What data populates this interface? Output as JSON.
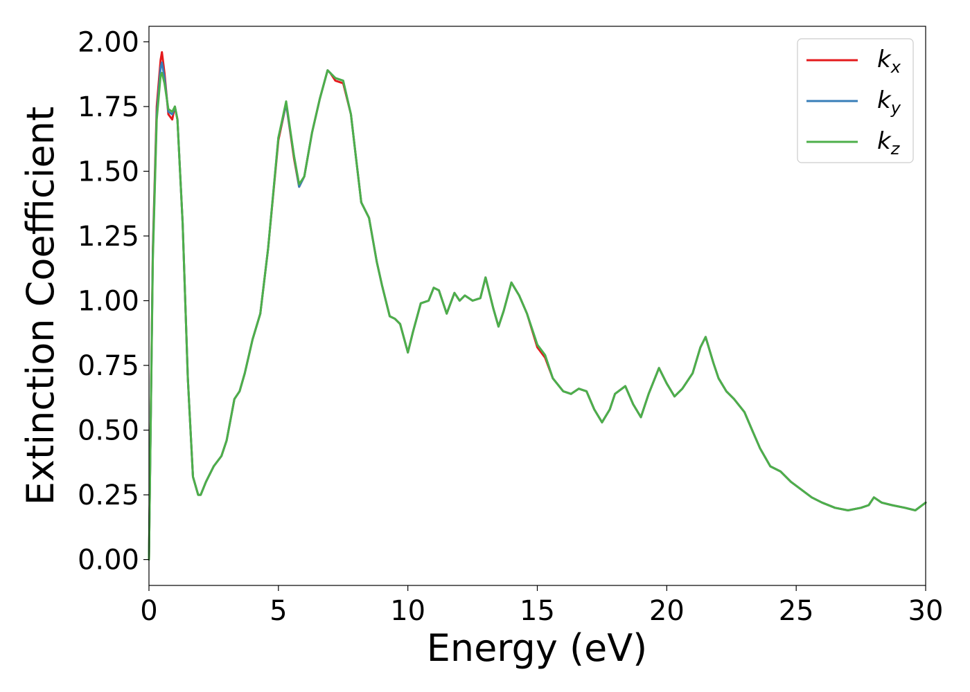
{
  "chart_data": {
    "type": "line",
    "title": "",
    "xlabel": "Energy (eV)",
    "ylabel": "Extinction Coefficient",
    "xlim": [
      0,
      30
    ],
    "ylim": [
      -0.1,
      2.06
    ],
    "xticks": [
      0,
      5,
      10,
      15,
      20,
      25,
      30
    ],
    "xtick_labels": [
      "0",
      "5",
      "10",
      "15",
      "20",
      "25",
      "30"
    ],
    "yticks": [
      0.0,
      0.25,
      0.5,
      0.75,
      1.0,
      1.25,
      1.5,
      1.75,
      2.0
    ],
    "ytick_labels": [
      "0.00",
      "0.25",
      "0.50",
      "0.75",
      "1.00",
      "1.25",
      "1.50",
      "1.75",
      "2.00"
    ],
    "grid": false,
    "legend_position": "top-right",
    "series": [
      {
        "name": "k",
        "subscript": "x",
        "color": "#e41a1c",
        "x": [
          0,
          0.15,
          0.3,
          0.45,
          0.5,
          0.6,
          0.75,
          0.9,
          1.0,
          1.1,
          1.3,
          1.5,
          1.7,
          1.9,
          2.0,
          2.2,
          2.5,
          2.8,
          3.0,
          3.3,
          3.5,
          3.7,
          4.0,
          4.3,
          4.6,
          5.0,
          5.3,
          5.6,
          5.8,
          6.0,
          6.3,
          6.6,
          6.9,
          7.0,
          7.2,
          7.5,
          7.8,
          8.0,
          8.2,
          8.5,
          8.8,
          9.0,
          9.3,
          9.5,
          9.7,
          10.0,
          10.2,
          10.5,
          10.8,
          11.0,
          11.2,
          11.5,
          11.8,
          12.0,
          12.2,
          12.5,
          12.8,
          13.0,
          13.3,
          13.5,
          13.7,
          14.0,
          14.3,
          14.6,
          15.0,
          15.3,
          15.6,
          16.0,
          16.3,
          16.6,
          16.9,
          17.2,
          17.5,
          17.8,
          18.0,
          18.4,
          18.7,
          19.0,
          19.3,
          19.7,
          20.0,
          20.3,
          20.6,
          21.0,
          21.3,
          21.5,
          21.8,
          22.0,
          22.3,
          22.6,
          23.0,
          23.3,
          23.6,
          24.0,
          24.4,
          24.8,
          25.2,
          25.6,
          26.0,
          26.5,
          27.0,
          27.5,
          27.8,
          28.0,
          28.3,
          28.7,
          29.2,
          29.6,
          30.0
        ],
        "values": [
          0.0,
          1.2,
          1.75,
          1.93,
          1.96,
          1.88,
          1.72,
          1.7,
          1.75,
          1.7,
          1.3,
          0.7,
          0.32,
          0.25,
          0.25,
          0.3,
          0.36,
          0.4,
          0.46,
          0.62,
          0.65,
          0.72,
          0.85,
          0.95,
          1.2,
          1.62,
          1.76,
          1.55,
          1.44,
          1.48,
          1.65,
          1.78,
          1.89,
          1.88,
          1.85,
          1.84,
          1.72,
          1.55,
          1.38,
          1.32,
          1.15,
          1.06,
          0.94,
          0.93,
          0.91,
          0.8,
          0.88,
          0.99,
          1.0,
          1.05,
          1.04,
          0.95,
          1.03,
          1.0,
          1.02,
          1.0,
          1.01,
          1.09,
          0.97,
          0.9,
          0.96,
          1.07,
          1.02,
          0.95,
          0.82,
          0.78,
          0.7,
          0.65,
          0.64,
          0.66,
          0.65,
          0.58,
          0.53,
          0.58,
          0.64,
          0.67,
          0.6,
          0.55,
          0.64,
          0.74,
          0.68,
          0.63,
          0.66,
          0.72,
          0.82,
          0.86,
          0.76,
          0.7,
          0.65,
          0.62,
          0.57,
          0.5,
          0.43,
          0.36,
          0.34,
          0.3,
          0.27,
          0.24,
          0.22,
          0.2,
          0.19,
          0.2,
          0.21,
          0.24,
          0.22,
          0.21,
          0.2,
          0.19,
          0.22
        ]
      },
      {
        "name": "k",
        "subscript": "y",
        "color": "#377eb8",
        "x": [
          0,
          0.15,
          0.3,
          0.45,
          0.5,
          0.6,
          0.75,
          0.9,
          1.0,
          1.1,
          1.3,
          1.5,
          1.7,
          1.9,
          2.0,
          2.2,
          2.5,
          2.8,
          3.0,
          3.3,
          3.5,
          3.7,
          4.0,
          4.3,
          4.6,
          5.0,
          5.3,
          5.6,
          5.8,
          6.0,
          6.3,
          6.6,
          6.9,
          7.0,
          7.2,
          7.5,
          7.8,
          8.0,
          8.2,
          8.5,
          8.8,
          9.0,
          9.3,
          9.5,
          9.7,
          10.0,
          10.2,
          10.5,
          10.8,
          11.0,
          11.2,
          11.5,
          11.8,
          12.0,
          12.2,
          12.5,
          12.8,
          13.0,
          13.3,
          13.5,
          13.7,
          14.0,
          14.3,
          14.6,
          15.0,
          15.3,
          15.6,
          16.0,
          16.3,
          16.6,
          16.9,
          17.2,
          17.5,
          17.8,
          18.0,
          18.4,
          18.7,
          19.0,
          19.3,
          19.7,
          20.0,
          20.3,
          20.6,
          21.0,
          21.3,
          21.5,
          21.8,
          22.0,
          22.3,
          22.6,
          23.0,
          23.3,
          23.6,
          24.0,
          24.4,
          24.8,
          25.2,
          25.6,
          26.0,
          26.5,
          27.0,
          27.5,
          27.8,
          28.0,
          28.3,
          28.7,
          29.2,
          29.6,
          30.0
        ],
        "values": [
          0.0,
          1.18,
          1.72,
          1.9,
          1.92,
          1.86,
          1.73,
          1.72,
          1.75,
          1.7,
          1.3,
          0.7,
          0.32,
          0.25,
          0.25,
          0.3,
          0.36,
          0.4,
          0.46,
          0.62,
          0.65,
          0.72,
          0.85,
          0.95,
          1.2,
          1.63,
          1.76,
          1.56,
          1.44,
          1.48,
          1.65,
          1.78,
          1.89,
          1.88,
          1.86,
          1.85,
          1.72,
          1.55,
          1.38,
          1.32,
          1.15,
          1.06,
          0.94,
          0.93,
          0.91,
          0.8,
          0.88,
          0.99,
          1.0,
          1.05,
          1.04,
          0.95,
          1.03,
          1.0,
          1.02,
          1.0,
          1.01,
          1.09,
          0.97,
          0.9,
          0.96,
          1.07,
          1.02,
          0.95,
          0.83,
          0.79,
          0.7,
          0.65,
          0.64,
          0.66,
          0.65,
          0.58,
          0.53,
          0.58,
          0.64,
          0.67,
          0.6,
          0.55,
          0.64,
          0.74,
          0.68,
          0.63,
          0.66,
          0.72,
          0.82,
          0.86,
          0.76,
          0.7,
          0.65,
          0.62,
          0.57,
          0.5,
          0.43,
          0.36,
          0.34,
          0.3,
          0.27,
          0.24,
          0.22,
          0.2,
          0.19,
          0.2,
          0.21,
          0.24,
          0.22,
          0.21,
          0.2,
          0.19,
          0.22
        ]
      },
      {
        "name": "k",
        "subscript": "z",
        "color": "#4daf4a",
        "x": [
          0,
          0.15,
          0.3,
          0.45,
          0.5,
          0.6,
          0.75,
          0.9,
          1.0,
          1.1,
          1.3,
          1.5,
          1.7,
          1.9,
          2.0,
          2.2,
          2.5,
          2.8,
          3.0,
          3.3,
          3.5,
          3.7,
          4.0,
          4.3,
          4.6,
          5.0,
          5.3,
          5.6,
          5.8,
          6.0,
          6.3,
          6.6,
          6.9,
          7.0,
          7.2,
          7.5,
          7.8,
          8.0,
          8.2,
          8.5,
          8.8,
          9.0,
          9.3,
          9.5,
          9.7,
          10.0,
          10.2,
          10.5,
          10.8,
          11.0,
          11.2,
          11.5,
          11.8,
          12.0,
          12.2,
          12.5,
          12.8,
          13.0,
          13.3,
          13.5,
          13.7,
          14.0,
          14.3,
          14.6,
          15.0,
          15.3,
          15.6,
          16.0,
          16.3,
          16.6,
          16.9,
          17.2,
          17.5,
          17.8,
          18.0,
          18.4,
          18.7,
          19.0,
          19.3,
          19.7,
          20.0,
          20.3,
          20.6,
          21.0,
          21.3,
          21.5,
          21.8,
          22.0,
          22.3,
          22.6,
          23.0,
          23.3,
          23.6,
          24.0,
          24.4,
          24.8,
          25.2,
          25.6,
          26.0,
          26.5,
          27.0,
          27.5,
          27.8,
          28.0,
          28.3,
          28.7,
          29.2,
          29.6,
          30.0
        ],
        "values": [
          0.0,
          1.16,
          1.7,
          1.87,
          1.88,
          1.84,
          1.74,
          1.73,
          1.75,
          1.7,
          1.3,
          0.7,
          0.32,
          0.25,
          0.25,
          0.3,
          0.36,
          0.4,
          0.46,
          0.62,
          0.65,
          0.72,
          0.85,
          0.95,
          1.2,
          1.63,
          1.77,
          1.56,
          1.45,
          1.48,
          1.65,
          1.78,
          1.89,
          1.88,
          1.86,
          1.85,
          1.72,
          1.55,
          1.38,
          1.32,
          1.15,
          1.06,
          0.94,
          0.93,
          0.91,
          0.8,
          0.88,
          0.99,
          1.0,
          1.05,
          1.04,
          0.95,
          1.03,
          1.0,
          1.02,
          1.0,
          1.01,
          1.09,
          0.97,
          0.9,
          0.96,
          1.07,
          1.02,
          0.95,
          0.83,
          0.79,
          0.7,
          0.65,
          0.64,
          0.66,
          0.65,
          0.58,
          0.53,
          0.58,
          0.64,
          0.67,
          0.6,
          0.55,
          0.64,
          0.74,
          0.68,
          0.63,
          0.66,
          0.72,
          0.82,
          0.86,
          0.76,
          0.7,
          0.65,
          0.62,
          0.57,
          0.5,
          0.43,
          0.36,
          0.34,
          0.3,
          0.27,
          0.24,
          0.22,
          0.2,
          0.19,
          0.2,
          0.21,
          0.24,
          0.22,
          0.21,
          0.2,
          0.19,
          0.22
        ]
      }
    ]
  }
}
